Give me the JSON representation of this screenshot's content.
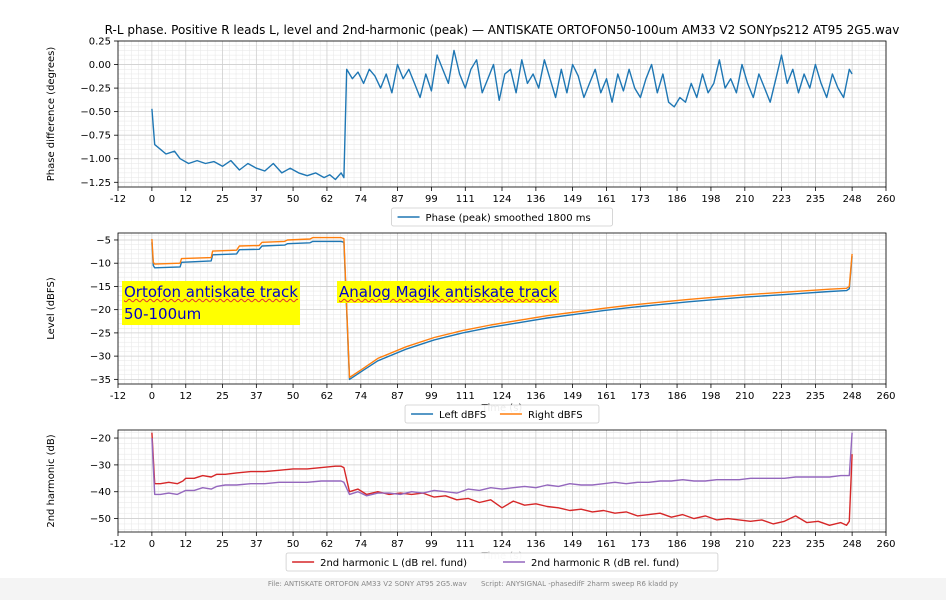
{
  "chart_data": [
    {
      "type": "line",
      "title": "R-L phase. Positive R leads L, level and 2nd-harmonic (peak) — ANTISKATE ORTOFON50-100um AM33 V2 SONYps212 AT95 2G5.wav",
      "ylabel": "Phase difference (degrees)",
      "xlabel": "",
      "xlim": [
        -12,
        260
      ],
      "ylim": [
        -1.3,
        0.25
      ],
      "xticks": [
        -12,
        0,
        12,
        25,
        37,
        50,
        62,
        74,
        87,
        99,
        111,
        124,
        136,
        149,
        161,
        173,
        186,
        198,
        210,
        223,
        235,
        248,
        260
      ],
      "yticks": [
        -1.25,
        -1.0,
        -0.75,
        -0.5,
        -0.25,
        0.0,
        0.25
      ],
      "ytick_labels": [
        "−1.25",
        "−1.00",
        "−0.75",
        "−0.50",
        "−0.25",
        "0.00",
        "0.25"
      ],
      "grid": true,
      "legend": "bottom-center outside",
      "series": [
        {
          "name": "Phase (peak) smoothed 1800 ms",
          "color": "#1f77b4",
          "x": [
            0,
            1,
            3,
            5,
            8,
            10,
            13,
            16,
            19,
            22,
            25,
            28,
            31,
            34,
            37,
            40,
            43,
            46,
            49,
            52,
            55,
            58,
            61,
            63,
            65,
            67,
            68,
            69,
            71,
            73,
            75,
            77,
            79,
            81,
            83,
            85,
            87,
            89,
            91,
            93,
            95,
            97,
            99,
            101,
            103,
            105,
            107,
            109,
            111,
            113,
            115,
            117,
            119,
            121,
            123,
            125,
            127,
            129,
            131,
            133,
            135,
            137,
            139,
            141,
            143,
            145,
            147,
            149,
            151,
            153,
            155,
            157,
            159,
            161,
            163,
            165,
            167,
            169,
            171,
            173,
            175,
            177,
            179,
            181,
            183,
            185,
            187,
            189,
            191,
            193,
            195,
            197,
            199,
            201,
            203,
            205,
            207,
            209,
            211,
            213,
            215,
            217,
            219,
            221,
            223,
            225,
            227,
            229,
            231,
            233,
            235,
            237,
            239,
            241,
            243,
            245,
            247,
            248
          ],
          "values": [
            -0.47,
            -0.85,
            -0.9,
            -0.95,
            -0.92,
            -1.0,
            -1.05,
            -1.02,
            -1.05,
            -1.03,
            -1.08,
            -1.02,
            -1.12,
            -1.05,
            -1.1,
            -1.13,
            -1.05,
            -1.15,
            -1.1,
            -1.15,
            -1.18,
            -1.15,
            -1.2,
            -1.17,
            -1.22,
            -1.15,
            -1.2,
            -0.05,
            -0.15,
            -0.08,
            -0.2,
            -0.05,
            -0.12,
            -0.25,
            -0.1,
            -0.3,
            0.0,
            -0.15,
            -0.05,
            -0.2,
            -0.35,
            -0.1,
            -0.28,
            0.1,
            -0.05,
            -0.2,
            0.15,
            -0.1,
            -0.25,
            -0.05,
            0.05,
            -0.3,
            -0.15,
            0.0,
            -0.38,
            -0.1,
            -0.05,
            -0.3,
            0.05,
            -0.2,
            -0.1,
            -0.25,
            0.05,
            -0.15,
            -0.35,
            -0.05,
            -0.3,
            0.0,
            -0.12,
            -0.35,
            -0.2,
            -0.05,
            -0.3,
            -0.15,
            -0.4,
            -0.1,
            -0.28,
            -0.05,
            -0.25,
            -0.35,
            -0.15,
            0.0,
            -0.3,
            -0.1,
            -0.4,
            -0.45,
            -0.35,
            -0.4,
            -0.2,
            -0.35,
            -0.1,
            -0.3,
            -0.2,
            0.05,
            -0.25,
            -0.15,
            -0.3,
            0.0,
            -0.2,
            -0.35,
            -0.1,
            -0.25,
            -0.4,
            -0.15,
            0.1,
            -0.2,
            -0.05,
            -0.3,
            -0.1,
            -0.25,
            0.0,
            -0.2,
            -0.35,
            -0.1,
            -0.25,
            -0.35,
            -0.05,
            -0.1
          ]
        }
      ]
    },
    {
      "type": "line",
      "ylabel": "Level (dBFS)",
      "xlabel": "Time (s)",
      "xlim": [
        -12,
        260
      ],
      "ylim": [
        -36,
        -3.5
      ],
      "xticks": [
        -12,
        0,
        12,
        25,
        37,
        50,
        62,
        74,
        87,
        99,
        111,
        124,
        136,
        149,
        161,
        173,
        186,
        198,
        210,
        223,
        235,
        248,
        260
      ],
      "yticks": [
        -35,
        -30,
        -25,
        -20,
        -15,
        -10,
        -5
      ],
      "ytick_labels": [
        "−35",
        "−30",
        "−25",
        "−20",
        "−15",
        "−10",
        "−5"
      ],
      "grid": true,
      "legend": "bottom-center outside",
      "annotations": [
        {
          "text_line1": "Ortofon antiskate track",
          "text_line2": "50-100um"
        },
        {
          "text": "Analog Magik antiskate track"
        }
      ],
      "series": [
        {
          "name": "Left dBFS",
          "color": "#1f77b4",
          "x": [
            0,
            0.5,
            1,
            10,
            10.5,
            21,
            21.5,
            30,
            31,
            38,
            39,
            47,
            48,
            56,
            57,
            67,
            68,
            70,
            75,
            80,
            90,
            100,
            110,
            120,
            130,
            140,
            150,
            160,
            170,
            180,
            190,
            200,
            210,
            220,
            230,
            240,
            246,
            247,
            248
          ],
          "values": [
            -5.5,
            -10.5,
            -11,
            -10.8,
            -9.8,
            -9.5,
            -8.2,
            -8.0,
            -7.1,
            -7.0,
            -6.3,
            -6.1,
            -5.8,
            -5.6,
            -5.3,
            -5.3,
            -5.5,
            -35,
            -33,
            -31,
            -28.5,
            -26.5,
            -25,
            -23.8,
            -22.8,
            -21.8,
            -21,
            -20.2,
            -19.5,
            -18.9,
            -18.3,
            -17.8,
            -17.3,
            -16.9,
            -16.5,
            -16.1,
            -15.9,
            -15.5,
            -8.5
          ]
        },
        {
          "name": "Right dBFS",
          "color": "#ff7f0e",
          "x": [
            0,
            0.5,
            1,
            10,
            10.5,
            21,
            21.5,
            30,
            31,
            38,
            39,
            47,
            48,
            56,
            57,
            67,
            68,
            70,
            75,
            80,
            90,
            100,
            110,
            120,
            130,
            140,
            150,
            160,
            170,
            180,
            190,
            200,
            210,
            220,
            230,
            240,
            246,
            247,
            248
          ],
          "values": [
            -4.8,
            -9.8,
            -10.2,
            -10.0,
            -9.0,
            -8.8,
            -7.4,
            -7.2,
            -6.3,
            -6.2,
            -5.5,
            -5.3,
            -5.0,
            -4.8,
            -4.5,
            -4.5,
            -4.7,
            -34.6,
            -32.6,
            -30.5,
            -28,
            -26,
            -24.5,
            -23.3,
            -22.3,
            -21.3,
            -20.5,
            -19.7,
            -19,
            -18.4,
            -17.8,
            -17.3,
            -16.8,
            -16.4,
            -16,
            -15.6,
            -15.4,
            -15,
            -8
          ]
        }
      ]
    },
    {
      "type": "line",
      "ylabel": "2nd harmonic (dB)",
      "xlabel": "Time (s)",
      "xlim": [
        -12,
        260
      ],
      "ylim": [
        -55,
        -17
      ],
      "xticks": [
        -12,
        0,
        12,
        25,
        37,
        50,
        62,
        74,
        87,
        99,
        111,
        124,
        136,
        149,
        161,
        173,
        186,
        198,
        210,
        223,
        235,
        248,
        260
      ],
      "yticks": [
        -50,
        -40,
        -30,
        -20
      ],
      "ytick_labels": [
        "−50",
        "−40",
        "−30",
        "−20"
      ],
      "grid": true,
      "legend": "bottom-center outside",
      "series": [
        {
          "name": "2nd harmonic L (dB rel. fund)",
          "color": "#d62728",
          "x": [
            0,
            1,
            3,
            6,
            9,
            11,
            12,
            15,
            18,
            21,
            23,
            26,
            30,
            35,
            40,
            45,
            50,
            55,
            60,
            65,
            67,
            68,
            70,
            73,
            76,
            80,
            84,
            88,
            92,
            96,
            100,
            104,
            108,
            112,
            116,
            120,
            124,
            128,
            132,
            136,
            140,
            144,
            148,
            152,
            156,
            160,
            164,
            168,
            172,
            176,
            180,
            184,
            188,
            192,
            196,
            200,
            204,
            208,
            212,
            216,
            220,
            224,
            228,
            232,
            236,
            240,
            244,
            246,
            247,
            248
          ],
          "values": [
            -18,
            -37,
            -37,
            -36.5,
            -37,
            -36,
            -35,
            -35,
            -34,
            -34.5,
            -33.5,
            -33.5,
            -33,
            -32.5,
            -32.5,
            -32,
            -31.5,
            -31.5,
            -31,
            -30.5,
            -30.5,
            -31,
            -40,
            -39,
            -41,
            -40,
            -41,
            -40.5,
            -41,
            -40.5,
            -42,
            -41.5,
            -43,
            -42.5,
            -44,
            -43,
            -46,
            -43.5,
            -45,
            -44.5,
            -45.5,
            -46,
            -47,
            -46.5,
            -47.5,
            -47,
            -48,
            -47.5,
            -49,
            -48.5,
            -48,
            -49.5,
            -48.5,
            -50,
            -49,
            -50.5,
            -50,
            -50.5,
            -51,
            -50.5,
            -52,
            -51,
            -49,
            -51.5,
            -51,
            -52.5,
            -51.5,
            -52.5,
            -51,
            -26
          ]
        },
        {
          "name": "2nd harmonic R (dB rel. fund)",
          "color": "#9467bd",
          "x": [
            0,
            1,
            3,
            6,
            9,
            11,
            12,
            15,
            18,
            21,
            23,
            26,
            30,
            35,
            40,
            45,
            50,
            55,
            60,
            65,
            67,
            68,
            70,
            73,
            76,
            80,
            84,
            88,
            92,
            96,
            100,
            104,
            108,
            112,
            116,
            120,
            124,
            128,
            132,
            136,
            140,
            144,
            148,
            152,
            156,
            160,
            164,
            168,
            172,
            176,
            180,
            184,
            188,
            192,
            196,
            200,
            204,
            208,
            212,
            216,
            220,
            224,
            228,
            232,
            236,
            240,
            244,
            246,
            247,
            248
          ],
          "values": [
            -20,
            -41,
            -41,
            -40.5,
            -41,
            -40,
            -39.5,
            -39.5,
            -38.5,
            -39,
            -38,
            -37.5,
            -37.5,
            -37,
            -37,
            -36.5,
            -36.5,
            -36.5,
            -36,
            -36,
            -36,
            -36.5,
            -41,
            -40,
            -41.5,
            -40.5,
            -40.5,
            -41,
            -40,
            -40.5,
            -39.5,
            -40,
            -40.5,
            -39,
            -39.5,
            -38.5,
            -39,
            -38.5,
            -38,
            -38.5,
            -37.5,
            -38,
            -37,
            -37.5,
            -37.5,
            -37,
            -36.5,
            -37,
            -36.5,
            -36.5,
            -36,
            -36,
            -35.5,
            -36,
            -36,
            -35.5,
            -35.5,
            -35.5,
            -35,
            -35,
            -35,
            -35,
            -34.5,
            -34.5,
            -34.5,
            -34.5,
            -34,
            -34,
            -34,
            -18
          ]
        }
      ]
    }
  ],
  "footer": {
    "file": "File: ANTISKATE ORTOFON AM33 V2 SONY AT95 2G5.wav",
    "script": "Script: ANYSIGNAL -phasedifF 2harm sweep  R6 kladd  py"
  }
}
